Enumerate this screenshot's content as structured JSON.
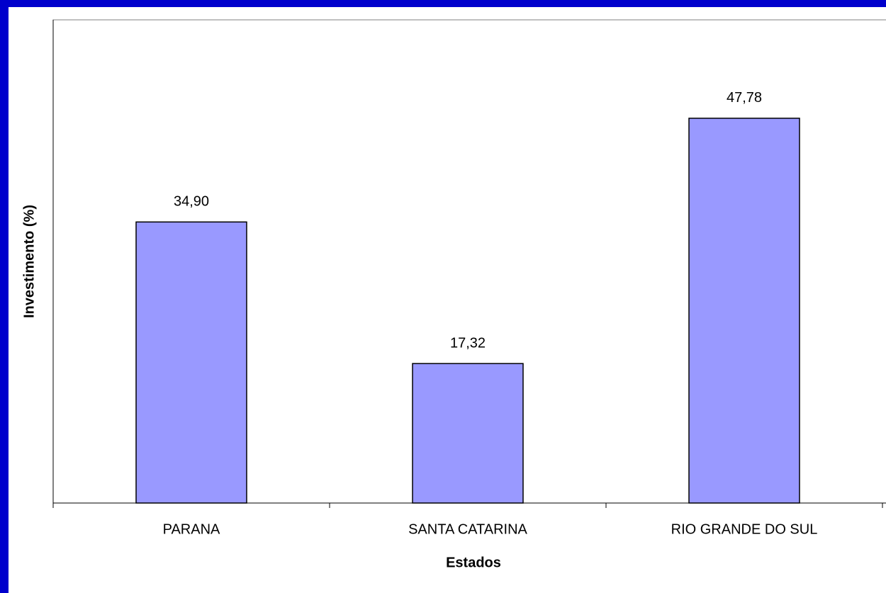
{
  "chart_data": {
    "type": "bar",
    "categories": [
      "PARANA",
      "SANTA CATARINA",
      "RIO GRANDE DO SUL"
    ],
    "values": [
      34.9,
      17.32,
      47.78
    ],
    "value_labels": [
      "34,90",
      "17,32",
      "47,78"
    ],
    "color": "#9999ff",
    "xlabel": "Estados",
    "ylabel": "Investimento (%)",
    "ylim": [
      0,
      60
    ],
    "grid": false
  }
}
